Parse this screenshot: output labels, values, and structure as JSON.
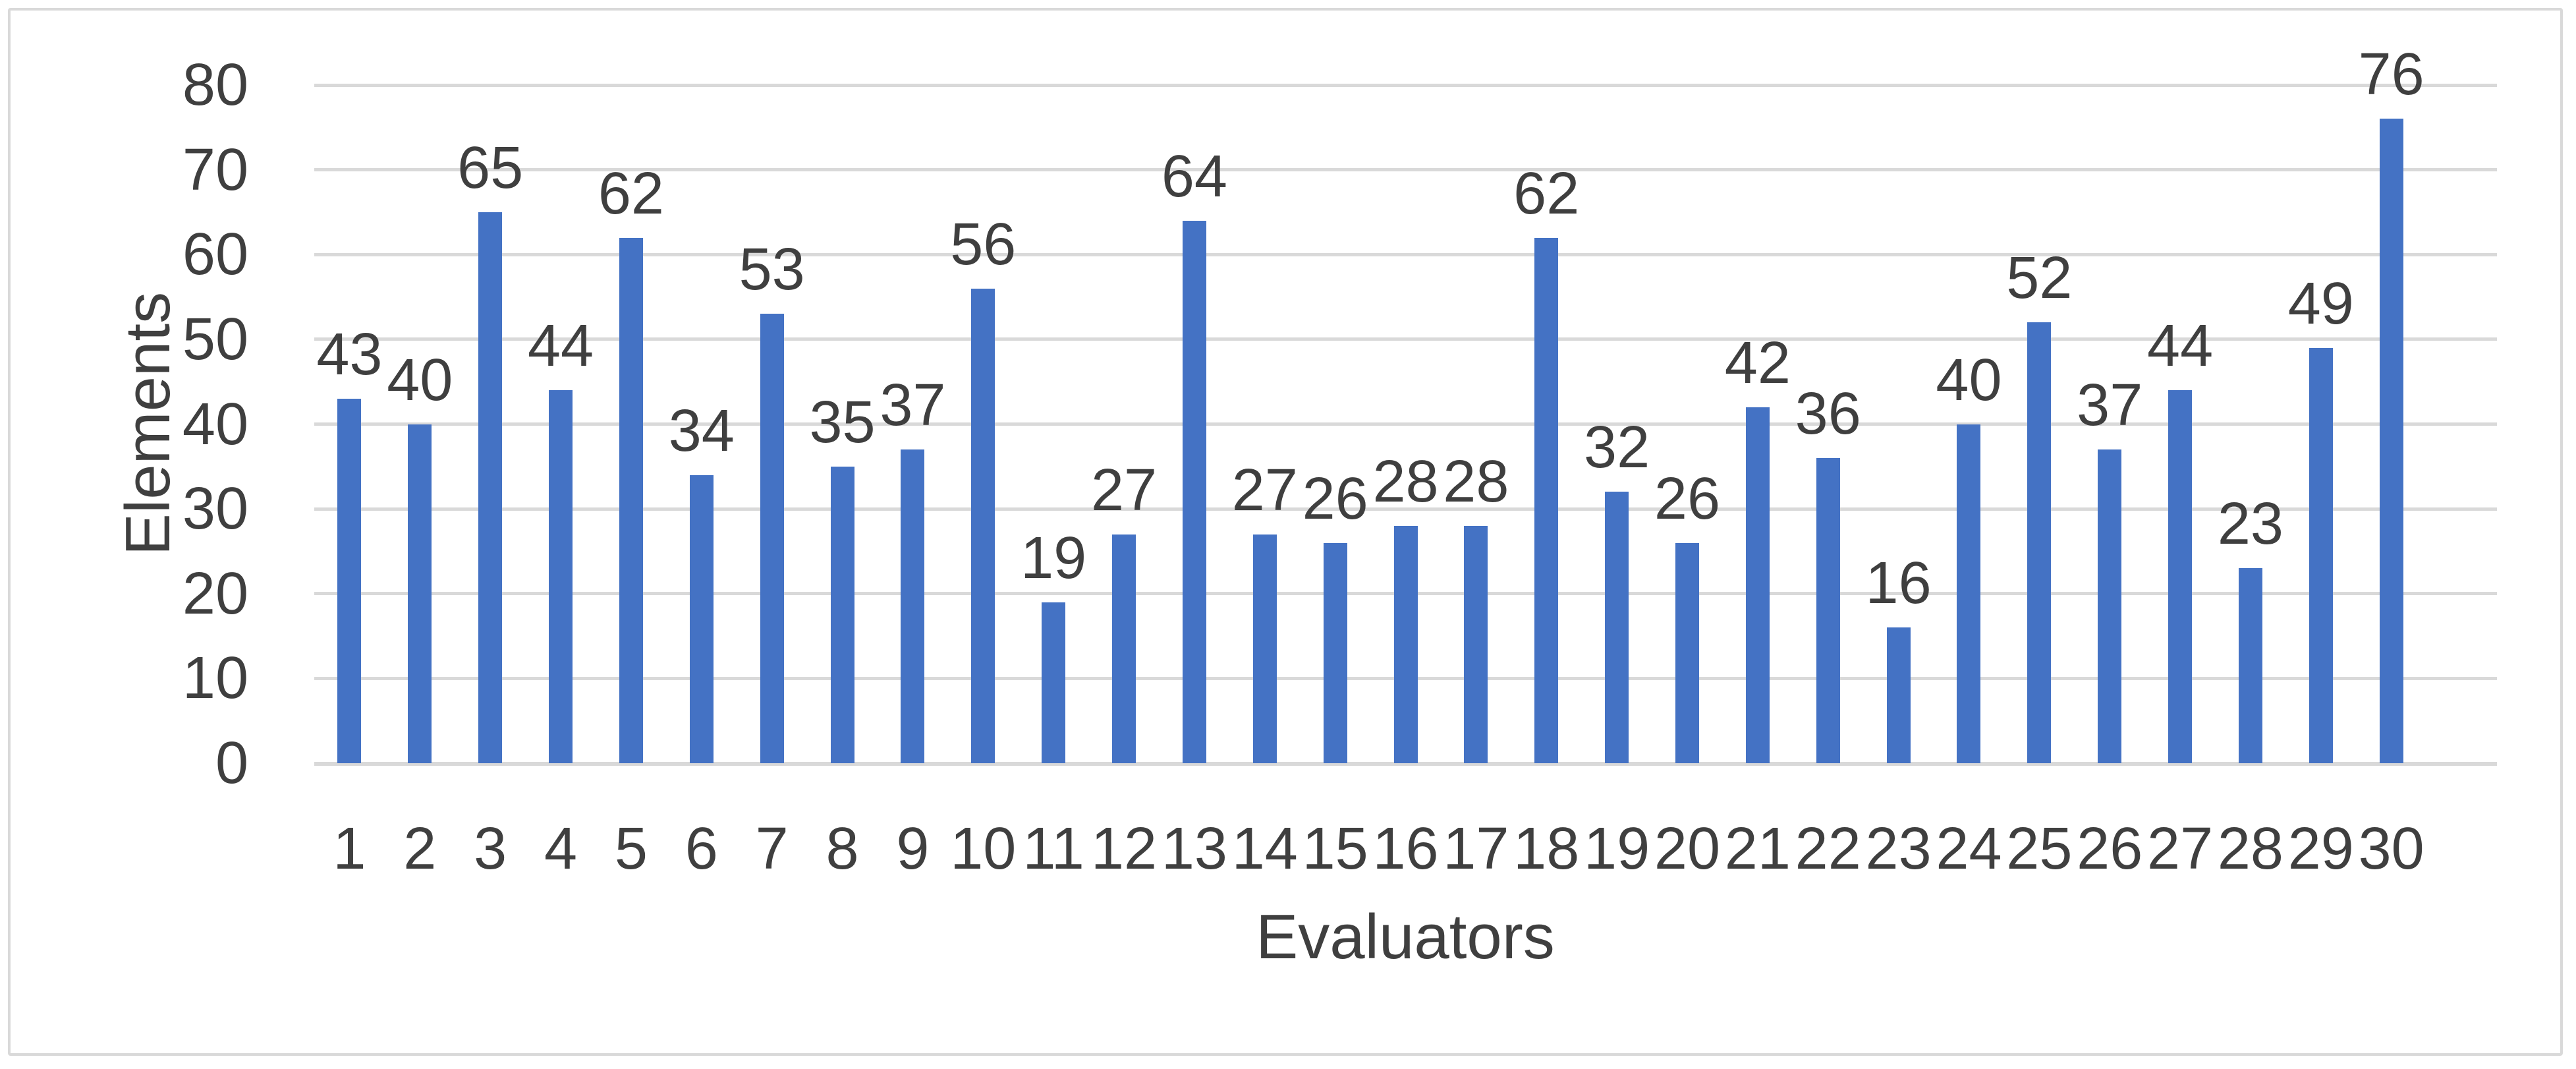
{
  "chart_data": {
    "type": "bar",
    "title": "",
    "xlabel": "Evaluators",
    "ylabel": "Elements",
    "categories": [
      1,
      2,
      3,
      4,
      5,
      6,
      7,
      8,
      9,
      10,
      11,
      12,
      13,
      14,
      15,
      16,
      17,
      18,
      19,
      20,
      21,
      22,
      23,
      24,
      25,
      26,
      27,
      28,
      29,
      30
    ],
    "values": [
      43,
      40,
      65,
      44,
      62,
      34,
      53,
      35,
      37,
      56,
      19,
      27,
      64,
      27,
      26,
      28,
      28,
      62,
      32,
      26,
      42,
      36,
      16,
      40,
      52,
      37,
      44,
      23,
      49,
      76
    ],
    "data_labels_shown": true,
    "ylim": [
      0,
      80
    ],
    "yticks": [
      0,
      10,
      20,
      30,
      40,
      50,
      60,
      70,
      80
    ],
    "grid": true,
    "legend": false,
    "colors": {
      "bar": "#4472C4",
      "gridline": "#D9D9D9",
      "frame_border": "#D9D9D9",
      "text": "#3F3F3F",
      "background": "#FFFFFF"
    }
  }
}
